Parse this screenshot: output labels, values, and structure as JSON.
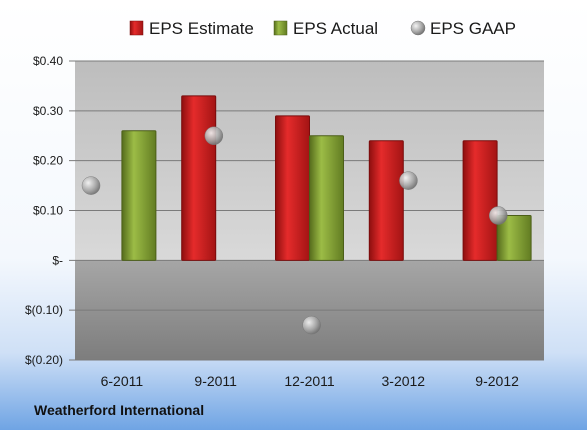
{
  "chart_data": {
    "type": "bar",
    "categories": [
      "6-2011",
      "9-2011",
      "12-2011",
      "3-2012",
      "9-2012"
    ],
    "series": [
      {
        "name": "EPS Estimate",
        "kind": "bar",
        "color": "#cc1a1a",
        "values": [
          null,
          0.33,
          0.29,
          0.24,
          0.24
        ]
      },
      {
        "name": "EPS Actual",
        "kind": "bar",
        "color": "#7a9a2a",
        "values": [
          0.26,
          null,
          0.25,
          null,
          0.09
        ]
      },
      {
        "name": "EPS GAAP",
        "kind": "marker",
        "color": "#a8a8a8",
        "values": [
          0.15,
          0.25,
          -0.13,
          0.16,
          0.09
        ]
      }
    ],
    "ylim": [
      -0.2,
      0.4
    ],
    "yticks": [
      {
        "value": 0.4,
        "label": "$0.40"
      },
      {
        "value": 0.3,
        "label": "$0.30"
      },
      {
        "value": 0.2,
        "label": "$0.20"
      },
      {
        "value": 0.1,
        "label": "$0.10"
      },
      {
        "value": 0.0,
        "label": "$-"
      },
      {
        "value": -0.1,
        "label": "$(0.10)"
      },
      {
        "value": -0.2,
        "label": "$(0.20)"
      }
    ],
    "grid": true,
    "legend": "top"
  },
  "company": "Weatherford International"
}
